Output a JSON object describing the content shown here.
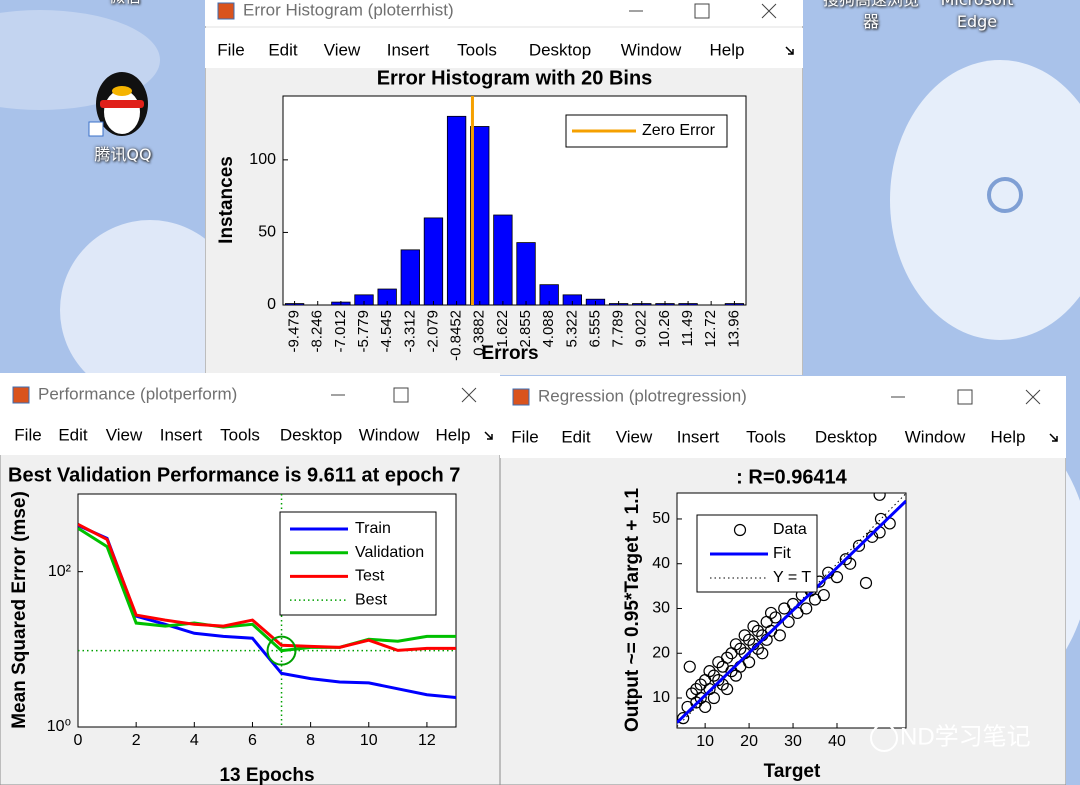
{
  "desktop": {
    "icons": [
      "微信",
      "腾讯QQ",
      "搜狗高速浏览器",
      "Microsoft Edge"
    ],
    "watermark": "ND学习笔记"
  },
  "windows": [
    {
      "title": "Error Histogram (ploterrhist)",
      "menu": [
        "File",
        "Edit",
        "View",
        "Insert",
        "Tools",
        "Desktop",
        "Window",
        "Help"
      ]
    },
    {
      "title": "Performance (plotperform)",
      "menu": [
        "File",
        "Edit",
        "View",
        "Insert",
        "Tools",
        "Desktop",
        "Window",
        "Help"
      ]
    },
    {
      "title": "Regression (plotregression)",
      "menu": [
        "File",
        "Edit",
        "View",
        "Insert",
        "Tools",
        "Desktop",
        "Window",
        "Help"
      ]
    }
  ],
  "chart_data": [
    {
      "type": "bar",
      "title": "Error Histogram with 20 Bins",
      "xlabel": "Errors",
      "ylabel": "Instances",
      "x": [
        -9.479,
        -8.246,
        -7.012,
        -5.779,
        -4.545,
        -3.312,
        -2.079,
        -0.8452,
        0.3882,
        1.622,
        2.855,
        4.088,
        5.322,
        6.555,
        7.789,
        9.022,
        10.26,
        11.49,
        12.72,
        13.96
      ],
      "values": [
        1,
        0,
        2,
        7,
        11,
        38,
        60,
        130,
        123,
        62,
        43,
        14,
        7,
        4,
        1,
        1,
        1,
        1,
        0,
        1
      ],
      "color": "#0000ff",
      "xlim": [
        -10.096,
        14.577
      ],
      "ylim": [
        0,
        144
      ],
      "yticks": [
        0,
        50,
        100
      ],
      "reference_line": {
        "name": "Zero Error",
        "x": 0,
        "color": "#f5a000"
      }
    },
    {
      "type": "line",
      "title": "Best Validation Performance is 9.611 at epoch 7",
      "xlabel": "13 Epochs",
      "ylabel": "Mean Squared Error  (mse)",
      "x": [
        0,
        1,
        2,
        3,
        4,
        5,
        6,
        7,
        8,
        9,
        10,
        11,
        12,
        13
      ],
      "series": [
        {
          "name": "Train",
          "color": "#0000ff",
          "values": [
            395,
            268,
            26.8,
            21,
            16.1,
            14.7,
            13.9,
            4.9,
            4.2,
            3.8,
            3.7,
            3.1,
            2.6,
            2.4
          ]
        },
        {
          "name": "Validation",
          "color": "#00c000",
          "values": [
            362,
            210,
            21.8,
            19.9,
            21.8,
            19.3,
            21,
            9.611,
            10.6,
            10.6,
            13.5,
            12.7,
            14.7,
            14.7
          ]
        },
        {
          "name": "Test",
          "color": "#ff0000",
          "values": [
            407,
            260,
            27.6,
            23.8,
            21,
            19.9,
            23.8,
            11.3,
            10.9,
            10.6,
            13.1,
            9.7,
            10.3,
            10.3
          ]
        }
      ],
      "best": {
        "name": "Best",
        "color": "#00a000",
        "x": 7,
        "value": 9.611
      },
      "log_y": true,
      "xlim": [
        0,
        13
      ],
      "xticks": [
        0,
        2,
        4,
        6,
        8,
        10,
        12
      ],
      "ylim": [
        1,
        1000
      ],
      "yticks": [
        {
          "value": 1,
          "label": "10⁰"
        },
        {
          "value": 100,
          "label": "10²"
        }
      ]
    },
    {
      "type": "scatter",
      "title": ": R=0.96414",
      "xlabel": "Target",
      "ylabel": "Output ~= 0.95*Target + 1.1",
      "x": [
        5,
        6,
        6.5,
        7,
        8,
        8,
        9,
        9,
        10,
        10,
        11,
        11,
        12,
        12,
        13,
        13,
        14,
        14,
        15,
        15,
        16,
        16,
        17,
        17,
        18,
        18,
        19,
        19,
        20,
        20,
        21,
        21,
        22,
        22,
        23,
        23,
        24,
        24,
        25,
        25,
        26,
        27,
        28,
        29,
        30,
        31,
        32,
        33,
        34,
        35,
        36,
        37,
        38,
        40,
        42,
        43,
        45,
        46.6,
        48,
        49.7,
        49.7,
        50,
        52
      ],
      "values": [
        5.5,
        8,
        17,
        11,
        9,
        12,
        10,
        13,
        8,
        14,
        12,
        16,
        10,
        15,
        14,
        18,
        13,
        17,
        12,
        19,
        16,
        20,
        15,
        22,
        17,
        21,
        20,
        24,
        18,
        23,
        22,
        26,
        21,
        25,
        24,
        20,
        27,
        23,
        25,
        29,
        28,
        24,
        30,
        27,
        31,
        29,
        33,
        30,
        34,
        32,
        36,
        33,
        38,
        37,
        41,
        40,
        44,
        35.7,
        46,
        47,
        55.4,
        50,
        49
      ],
      "legend": [
        "Data",
        "Fit",
        "Y = T"
      ],
      "color": "#000000",
      "fit_color": "#0000ff",
      "fit_slope": 0.95,
      "fit_intercept": 1.1,
      "xlim": [
        3.6,
        55.7
      ],
      "xticks": [
        10,
        20,
        30,
        40
      ],
      "ylim": [
        3.3,
        55.8
      ],
      "yticks": [
        10,
        20,
        30,
        40,
        50
      ]
    }
  ]
}
